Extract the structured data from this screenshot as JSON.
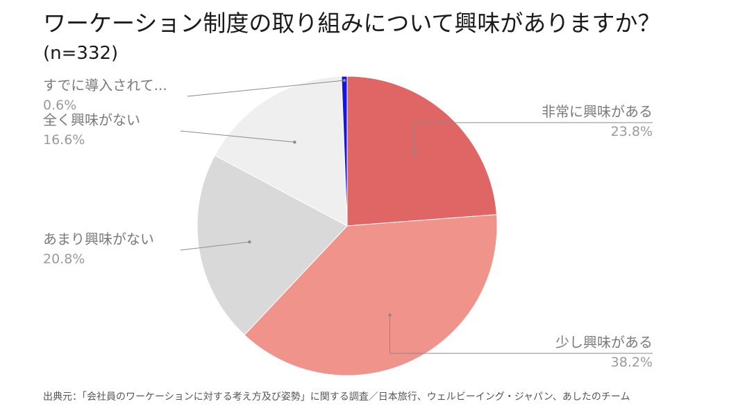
{
  "title": "ワーケーション制度の取り組みについて興味がありますか？",
  "title_n": "(n=332)",
  "source": "出典元：「会社員のワーケーションに対する考え方及び姿勢」に関する調査／日本旅行、ウェルビーイング・ジャパン、あしたのチーム",
  "chart_data": {
    "type": "pie",
    "title": "ワーケーション制度の取り組みについて興味がありますか？(n=332)",
    "slices": [
      {
        "label": "非常に興味がある",
        "value": 23.8,
        "display": "23.8%",
        "color": "#e06666",
        "side": "right"
      },
      {
        "label": "少し興味がある",
        "value": 38.2,
        "display": "38.2%",
        "color": "#f0938a",
        "side": "right"
      },
      {
        "label": "あまり興味がない",
        "value": 20.8,
        "display": "20.8%",
        "color": "#d9d9d9",
        "side": "left"
      },
      {
        "label": "全く興味がない",
        "value": 16.6,
        "display": "16.6%",
        "color": "#efefef",
        "side": "left"
      },
      {
        "label": "すでに導入されて...",
        "value": 0.6,
        "display": "0.6%",
        "color": "#1515e0",
        "side": "left"
      }
    ],
    "legend": "none"
  }
}
